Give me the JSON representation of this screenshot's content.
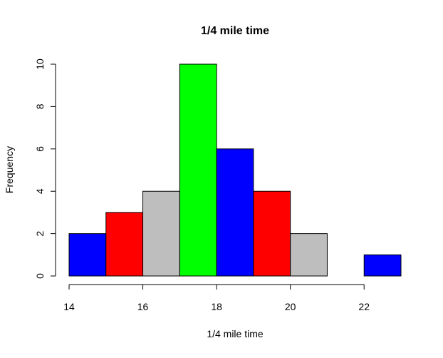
{
  "chart_data": {
    "type": "bar",
    "title": "1/4 mile time",
    "xlabel": "1/4 mile time",
    "ylabel": "Frequency",
    "bins": [
      {
        "start": 14,
        "end": 15,
        "count": 2,
        "color": "#0000FF"
      },
      {
        "start": 15,
        "end": 16,
        "count": 3,
        "color": "#FF0000"
      },
      {
        "start": 16,
        "end": 17,
        "count": 4,
        "color": "#BEBEBE"
      },
      {
        "start": 17,
        "end": 18,
        "count": 10,
        "color": "#00FF00"
      },
      {
        "start": 18,
        "end": 19,
        "count": 6,
        "color": "#0000FF"
      },
      {
        "start": 19,
        "end": 20,
        "count": 4,
        "color": "#FF0000"
      },
      {
        "start": 20,
        "end": 21,
        "count": 2,
        "color": "#BEBEBE"
      },
      {
        "start": 21,
        "end": 22,
        "count": 0,
        "color": "#00FF00"
      },
      {
        "start": 22,
        "end": 23,
        "count": 1,
        "color": "#0000FF"
      }
    ],
    "xlim": [
      14,
      23
    ],
    "ylim": [
      0,
      10
    ],
    "xticks": [
      "14",
      "16",
      "18",
      "20",
      "22"
    ],
    "yticks": [
      "0",
      "2",
      "4",
      "6",
      "8",
      "10"
    ],
    "grid": false,
    "legend": "none"
  }
}
